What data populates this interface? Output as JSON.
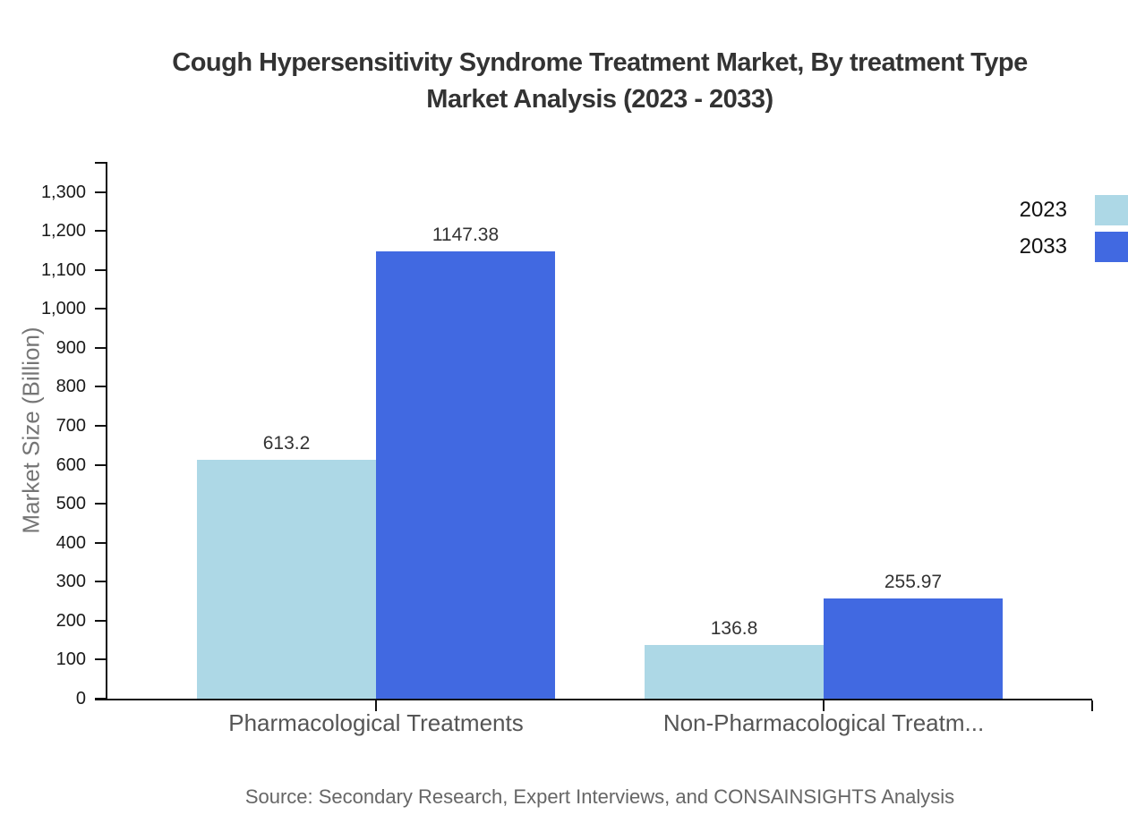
{
  "title": {
    "line1": "Cough Hypersensitivity Syndrome Treatment Market, By treatment Type",
    "line2": "Market Analysis (2023 - 2033)"
  },
  "y_axis_label": "Market Size (Billion)",
  "source_note": "Source: Secondary Research, Expert Interviews, and CONSAINSIGHTS Analysis",
  "legend": {
    "position": "top-right",
    "items": [
      {
        "label": "2023",
        "color": "#ADD8E6"
      },
      {
        "label": "2033",
        "color": "#4169E1"
      }
    ]
  },
  "chart_data": {
    "type": "bar",
    "title": "Cough Hypersensitivity Syndrome Treatment Market, By treatment Type Market Analysis (2023 - 2033)",
    "categories": [
      "Pharmacological Treatments",
      "Non-Pharmacological Treatm..."
    ],
    "series": [
      {
        "name": "2023",
        "color": "#ADD8E6",
        "values": [
          613.2,
          136.8
        ]
      },
      {
        "name": "2033",
        "color": "#4169E1",
        "values": [
          1147.38,
          255.97
        ]
      }
    ],
    "value_labels": [
      "613.2",
      "1147.38",
      "136.8",
      "255.97"
    ],
    "xlabel": "",
    "ylabel": "Market Size (Billion)",
    "ylim": [
      0,
      1377
    ],
    "yticks": [
      0,
      100,
      200,
      300,
      400,
      500,
      600,
      700,
      800,
      900,
      1000,
      1100,
      1200,
      1300
    ],
    "grid": false,
    "legend_position": "top-right"
  }
}
